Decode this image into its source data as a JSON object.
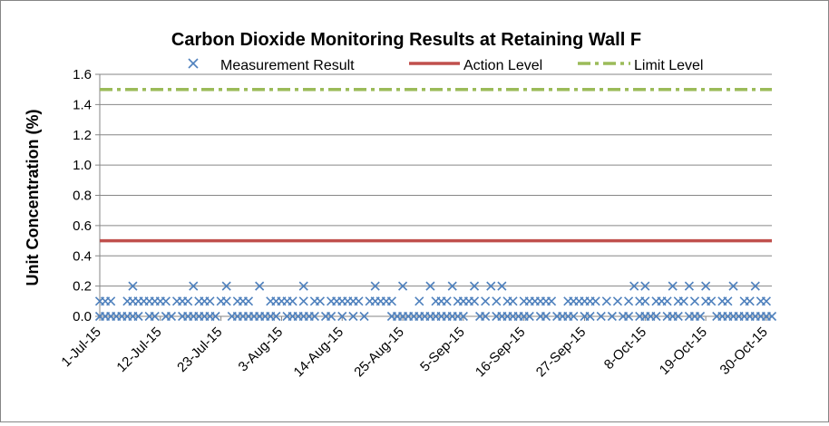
{
  "chart_data": {
    "type": "scatter",
    "title": "Carbon Dioxide Monitoring Results at Retaining Wall F",
    "xlabel": "",
    "ylabel": "Unit Concentration (%)",
    "ylim": [
      0,
      1.6
    ],
    "y_ticks": [
      "0.0",
      "0.2",
      "0.4",
      "0.6",
      "0.8",
      "1.0",
      "1.2",
      "1.4",
      "1.6"
    ],
    "x_range": [
      "2015-07-01",
      "2015-10-31"
    ],
    "x_ticks": [
      {
        "date": "2015-07-01",
        "label": "1-Jul-15"
      },
      {
        "date": "2015-07-12",
        "label": "12-Jul-15"
      },
      {
        "date": "2015-07-23",
        "label": "23-Jul-15"
      },
      {
        "date": "2015-08-03",
        "label": "3-Aug-15"
      },
      {
        "date": "2015-08-14",
        "label": "14-Aug-15"
      },
      {
        "date": "2015-08-25",
        "label": "25-Aug-15"
      },
      {
        "date": "2015-09-05",
        "label": "5-Sep-15"
      },
      {
        "date": "2015-09-16",
        "label": "16-Sep-15"
      },
      {
        "date": "2015-09-27",
        "label": "27-Sep-15"
      },
      {
        "date": "2015-10-08",
        "label": "8-Oct-15"
      },
      {
        "date": "2015-10-19",
        "label": "19-Oct-15"
      },
      {
        "date": "2015-10-30",
        "label": "30-Oct-15"
      }
    ],
    "grid": "horizontal",
    "legend_position": "top",
    "series": [
      {
        "name": "Measurement Result",
        "kind": "markers",
        "marker": "x",
        "color": "#4F81BD",
        "points": [
          {
            "x": "2015-07-01",
            "y": [
              0.0,
              0.1
            ]
          },
          {
            "x": "2015-07-02",
            "y": [
              0.0,
              0.1
            ]
          },
          {
            "x": "2015-07-03",
            "y": [
              0.0,
              0.1
            ]
          },
          {
            "x": "2015-07-04",
            "y": [
              0.0
            ]
          },
          {
            "x": "2015-07-05",
            "y": [
              0.0
            ]
          },
          {
            "x": "2015-07-06",
            "y": [
              0.0,
              0.1
            ]
          },
          {
            "x": "2015-07-07",
            "y": [
              0.0,
              0.1,
              0.2
            ]
          },
          {
            "x": "2015-07-08",
            "y": [
              0.0,
              0.1
            ]
          },
          {
            "x": "2015-07-09",
            "y": [
              0.1
            ]
          },
          {
            "x": "2015-07-10",
            "y": [
              0.0,
              0.1
            ]
          },
          {
            "x": "2015-07-11",
            "y": [
              0.0,
              0.1
            ]
          },
          {
            "x": "2015-07-12",
            "y": [
              0.1
            ]
          },
          {
            "x": "2015-07-13",
            "y": [
              0.0,
              0.1
            ]
          },
          {
            "x": "2015-07-14",
            "y": [
              0.0
            ]
          },
          {
            "x": "2015-07-15",
            "y": [
              0.1
            ]
          },
          {
            "x": "2015-07-16",
            "y": [
              0.0,
              0.1
            ]
          },
          {
            "x": "2015-07-17",
            "y": [
              0.0,
              0.1
            ]
          },
          {
            "x": "2015-07-18",
            "y": [
              0.0,
              0.2
            ]
          },
          {
            "x": "2015-07-19",
            "y": [
              0.0,
              0.1
            ]
          },
          {
            "x": "2015-07-20",
            "y": [
              0.0,
              0.1
            ]
          },
          {
            "x": "2015-07-21",
            "y": [
              0.0,
              0.1
            ]
          },
          {
            "x": "2015-07-22",
            "y": [
              0.0
            ]
          },
          {
            "x": "2015-07-23",
            "y": [
              0.1
            ]
          },
          {
            "x": "2015-07-24",
            "y": [
              0.1,
              0.2
            ]
          },
          {
            "x": "2015-07-25",
            "y": [
              0.0
            ]
          },
          {
            "x": "2015-07-26",
            "y": [
              0.0,
              0.1
            ]
          },
          {
            "x": "2015-07-27",
            "y": [
              0.0,
              0.1
            ]
          },
          {
            "x": "2015-07-28",
            "y": [
              0.0,
              0.1
            ]
          },
          {
            "x": "2015-07-29",
            "y": [
              0.0
            ]
          },
          {
            "x": "2015-07-30",
            "y": [
              0.0,
              0.2
            ]
          },
          {
            "x": "2015-07-31",
            "y": [
              0.0
            ]
          },
          {
            "x": "2015-08-01",
            "y": [
              0.0,
              0.1
            ]
          },
          {
            "x": "2015-08-02",
            "y": [
              0.0,
              0.1
            ]
          },
          {
            "x": "2015-08-03",
            "y": [
              0.1
            ]
          },
          {
            "x": "2015-08-04",
            "y": [
              0.0,
              0.1
            ]
          },
          {
            "x": "2015-08-05",
            "y": [
              0.0,
              0.1
            ]
          },
          {
            "x": "2015-08-06",
            "y": [
              0.0
            ]
          },
          {
            "x": "2015-08-07",
            "y": [
              0.0,
              0.1,
              0.2
            ]
          },
          {
            "x": "2015-08-08",
            "y": [
              0.0
            ]
          },
          {
            "x": "2015-08-09",
            "y": [
              0.0,
              0.1
            ]
          },
          {
            "x": "2015-08-10",
            "y": [
              0.1
            ]
          },
          {
            "x": "2015-08-11",
            "y": [
              0.0
            ]
          },
          {
            "x": "2015-08-12",
            "y": [
              0.0,
              0.1
            ]
          },
          {
            "x": "2015-08-13",
            "y": [
              0.1
            ]
          },
          {
            "x": "2015-08-14",
            "y": [
              0.0,
              0.1
            ]
          },
          {
            "x": "2015-08-15",
            "y": [
              0.1
            ]
          },
          {
            "x": "2015-08-16",
            "y": [
              0.0,
              0.1
            ]
          },
          {
            "x": "2015-08-17",
            "y": [
              0.1
            ]
          },
          {
            "x": "2015-08-18",
            "y": [
              0.0
            ]
          },
          {
            "x": "2015-08-19",
            "y": [
              0.1
            ]
          },
          {
            "x": "2015-08-20",
            "y": [
              0.1,
              0.2
            ]
          },
          {
            "x": "2015-08-21",
            "y": [
              0.1
            ]
          },
          {
            "x": "2015-08-22",
            "y": [
              0.1
            ]
          },
          {
            "x": "2015-08-23",
            "y": [
              0.0,
              0.1
            ]
          },
          {
            "x": "2015-08-24",
            "y": [
              0.0
            ]
          },
          {
            "x": "2015-08-25",
            "y": [
              0.0,
              0.2
            ]
          },
          {
            "x": "2015-08-26",
            "y": [
              0.0
            ]
          },
          {
            "x": "2015-08-27",
            "y": [
              0.0
            ]
          },
          {
            "x": "2015-08-28",
            "y": [
              0.0,
              0.1
            ]
          },
          {
            "x": "2015-08-29",
            "y": [
              0.0
            ]
          },
          {
            "x": "2015-08-30",
            "y": [
              0.0,
              0.2
            ]
          },
          {
            "x": "2015-08-31",
            "y": [
              0.0,
              0.1
            ]
          },
          {
            "x": "2015-09-01",
            "y": [
              0.0,
              0.1
            ]
          },
          {
            "x": "2015-09-02",
            "y": [
              0.0,
              0.1
            ]
          },
          {
            "x": "2015-09-03",
            "y": [
              0.0,
              0.2
            ]
          },
          {
            "x": "2015-09-04",
            "y": [
              0.0,
              0.1
            ]
          },
          {
            "x": "2015-09-05",
            "y": [
              0.0,
              0.1
            ]
          },
          {
            "x": "2015-09-06",
            "y": [
              0.1
            ]
          },
          {
            "x": "2015-09-07",
            "y": [
              0.1,
              0.2
            ]
          },
          {
            "x": "2015-09-08",
            "y": [
              0.0
            ]
          },
          {
            "x": "2015-09-09",
            "y": [
              0.0,
              0.1
            ]
          },
          {
            "x": "2015-09-10",
            "y": [
              0.2
            ]
          },
          {
            "x": "2015-09-11",
            "y": [
              0.0,
              0.1
            ]
          },
          {
            "x": "2015-09-12",
            "y": [
              0.0,
              0.2
            ]
          },
          {
            "x": "2015-09-13",
            "y": [
              0.0,
              0.1
            ]
          },
          {
            "x": "2015-09-14",
            "y": [
              0.0,
              0.1
            ]
          },
          {
            "x": "2015-09-15",
            "y": [
              0.0
            ]
          },
          {
            "x": "2015-09-16",
            "y": [
              0.0,
              0.1
            ]
          },
          {
            "x": "2015-09-17",
            "y": [
              0.0,
              0.1
            ]
          },
          {
            "x": "2015-09-18",
            "y": [
              0.1
            ]
          },
          {
            "x": "2015-09-19",
            "y": [
              0.0,
              0.1
            ]
          },
          {
            "x": "2015-09-20",
            "y": [
              0.0,
              0.1
            ]
          },
          {
            "x": "2015-09-21",
            "y": [
              0.1
            ]
          },
          {
            "x": "2015-09-22",
            "y": [
              0.0
            ]
          },
          {
            "x": "2015-09-23",
            "y": [
              0.0
            ]
          },
          {
            "x": "2015-09-24",
            "y": [
              0.0,
              0.1
            ]
          },
          {
            "x": "2015-09-25",
            "y": [
              0.0,
              0.1
            ]
          },
          {
            "x": "2015-09-26",
            "y": [
              0.1
            ]
          },
          {
            "x": "2015-09-27",
            "y": [
              0.0,
              0.1
            ]
          },
          {
            "x": "2015-09-28",
            "y": [
              0.0,
              0.1
            ]
          },
          {
            "x": "2015-09-29",
            "y": [
              0.1
            ]
          },
          {
            "x": "2015-09-30",
            "y": [
              0.0
            ]
          },
          {
            "x": "2015-10-01",
            "y": [
              0.1
            ]
          },
          {
            "x": "2015-10-02",
            "y": [
              0.0
            ]
          },
          {
            "x": "2015-10-03",
            "y": [
              0.1
            ]
          },
          {
            "x": "2015-10-04",
            "y": [
              0.0
            ]
          },
          {
            "x": "2015-10-05",
            "y": [
              0.0,
              0.1
            ]
          },
          {
            "x": "2015-10-06",
            "y": [
              0.2
            ]
          },
          {
            "x": "2015-10-07",
            "y": [
              0.0,
              0.1
            ]
          },
          {
            "x": "2015-10-08",
            "y": [
              0.0,
              0.1,
              0.2
            ]
          },
          {
            "x": "2015-10-09",
            "y": [
              0.0
            ]
          },
          {
            "x": "2015-10-10",
            "y": [
              0.0,
              0.1
            ]
          },
          {
            "x": "2015-10-11",
            "y": [
              0.1
            ]
          },
          {
            "x": "2015-10-12",
            "y": [
              0.0,
              0.1
            ]
          },
          {
            "x": "2015-10-13",
            "y": [
              0.0,
              0.2
            ]
          },
          {
            "x": "2015-10-14",
            "y": [
              0.0,
              0.1
            ]
          },
          {
            "x": "2015-10-15",
            "y": [
              0.1
            ]
          },
          {
            "x": "2015-10-16",
            "y": [
              0.0,
              0.2
            ]
          },
          {
            "x": "2015-10-17",
            "y": [
              0.0,
              0.1
            ]
          },
          {
            "x": "2015-10-18",
            "y": [
              0.0
            ]
          },
          {
            "x": "2015-10-19",
            "y": [
              0.1,
              0.2
            ]
          },
          {
            "x": "2015-10-20",
            "y": [
              0.1
            ]
          },
          {
            "x": "2015-10-21",
            "y": [
              0.0
            ]
          },
          {
            "x": "2015-10-22",
            "y": [
              0.0,
              0.1
            ]
          },
          {
            "x": "2015-10-23",
            "y": [
              0.0,
              0.1
            ]
          },
          {
            "x": "2015-10-24",
            "y": [
              0.0,
              0.2
            ]
          },
          {
            "x": "2015-10-25",
            "y": [
              0.0
            ]
          },
          {
            "x": "2015-10-26",
            "y": [
              0.0,
              0.1
            ]
          },
          {
            "x": "2015-10-27",
            "y": [
              0.0,
              0.1
            ]
          },
          {
            "x": "2015-10-28",
            "y": [
              0.0,
              0.2
            ]
          },
          {
            "x": "2015-10-29",
            "y": [
              0.0,
              0.1
            ]
          },
          {
            "x": "2015-10-30",
            "y": [
              0.0,
              0.1
            ]
          },
          {
            "x": "2015-10-31",
            "y": [
              0.0
            ]
          }
        ]
      },
      {
        "name": "Action Level",
        "kind": "line",
        "style": "solid",
        "color": "#C0504D",
        "x": [
          "2015-07-01",
          "2015-10-31"
        ],
        "values": [
          0.5,
          0.5
        ]
      },
      {
        "name": "Limit Level",
        "kind": "line",
        "style": "dash-dot",
        "color": "#9BBB59",
        "x": [
          "2015-07-01",
          "2015-10-31"
        ],
        "values": [
          1.5,
          1.5
        ]
      }
    ]
  }
}
